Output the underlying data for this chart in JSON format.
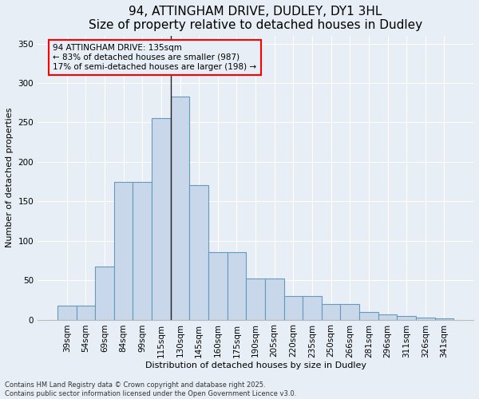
{
  "title": "94, ATTINGHAM DRIVE, DUDLEY, DY1 3HL",
  "subtitle": "Size of property relative to detached houses in Dudley",
  "xlabel": "Distribution of detached houses by size in Dudley",
  "ylabel": "Number of detached properties",
  "bar_color": "#c8d8ea",
  "bar_edge_color": "#6699bb",
  "background_color": "#e8eef5",
  "grid_color": "#ffffff",
  "categories": [
    "39sqm",
    "54sqm",
    "69sqm",
    "84sqm",
    "99sqm",
    "115sqm",
    "130sqm",
    "145sqm",
    "160sqm",
    "175sqm",
    "190sqm",
    "205sqm",
    "220sqm",
    "235sqm",
    "250sqm",
    "266sqm",
    "281sqm",
    "296sqm",
    "311sqm",
    "326sqm",
    "341sqm"
  ],
  "values": [
    18,
    18,
    67,
    175,
    175,
    255,
    283,
    170,
    85,
    85,
    52,
    52,
    30,
    30,
    20,
    20,
    10,
    7,
    5,
    3,
    2
  ],
  "vline_x_index": 6,
  "annotation_text_line1": "94 ATTINGHAM DRIVE: 135sqm",
  "annotation_text_line2": "← 83% of detached houses are smaller (987)",
  "annotation_text_line3": "17% of semi-detached houses are larger (198) →",
  "ylim": [
    0,
    360
  ],
  "yticks": [
    0,
    50,
    100,
    150,
    200,
    250,
    300,
    350
  ],
  "footnote": "Contains HM Land Registry data © Crown copyright and database right 2025.\nContains public sector information licensed under the Open Government Licence v3.0.",
  "title_fontsize": 11,
  "axis_label_fontsize": 8,
  "tick_fontsize": 7.5,
  "annotation_fontsize": 7.5,
  "footnote_fontsize": 6
}
